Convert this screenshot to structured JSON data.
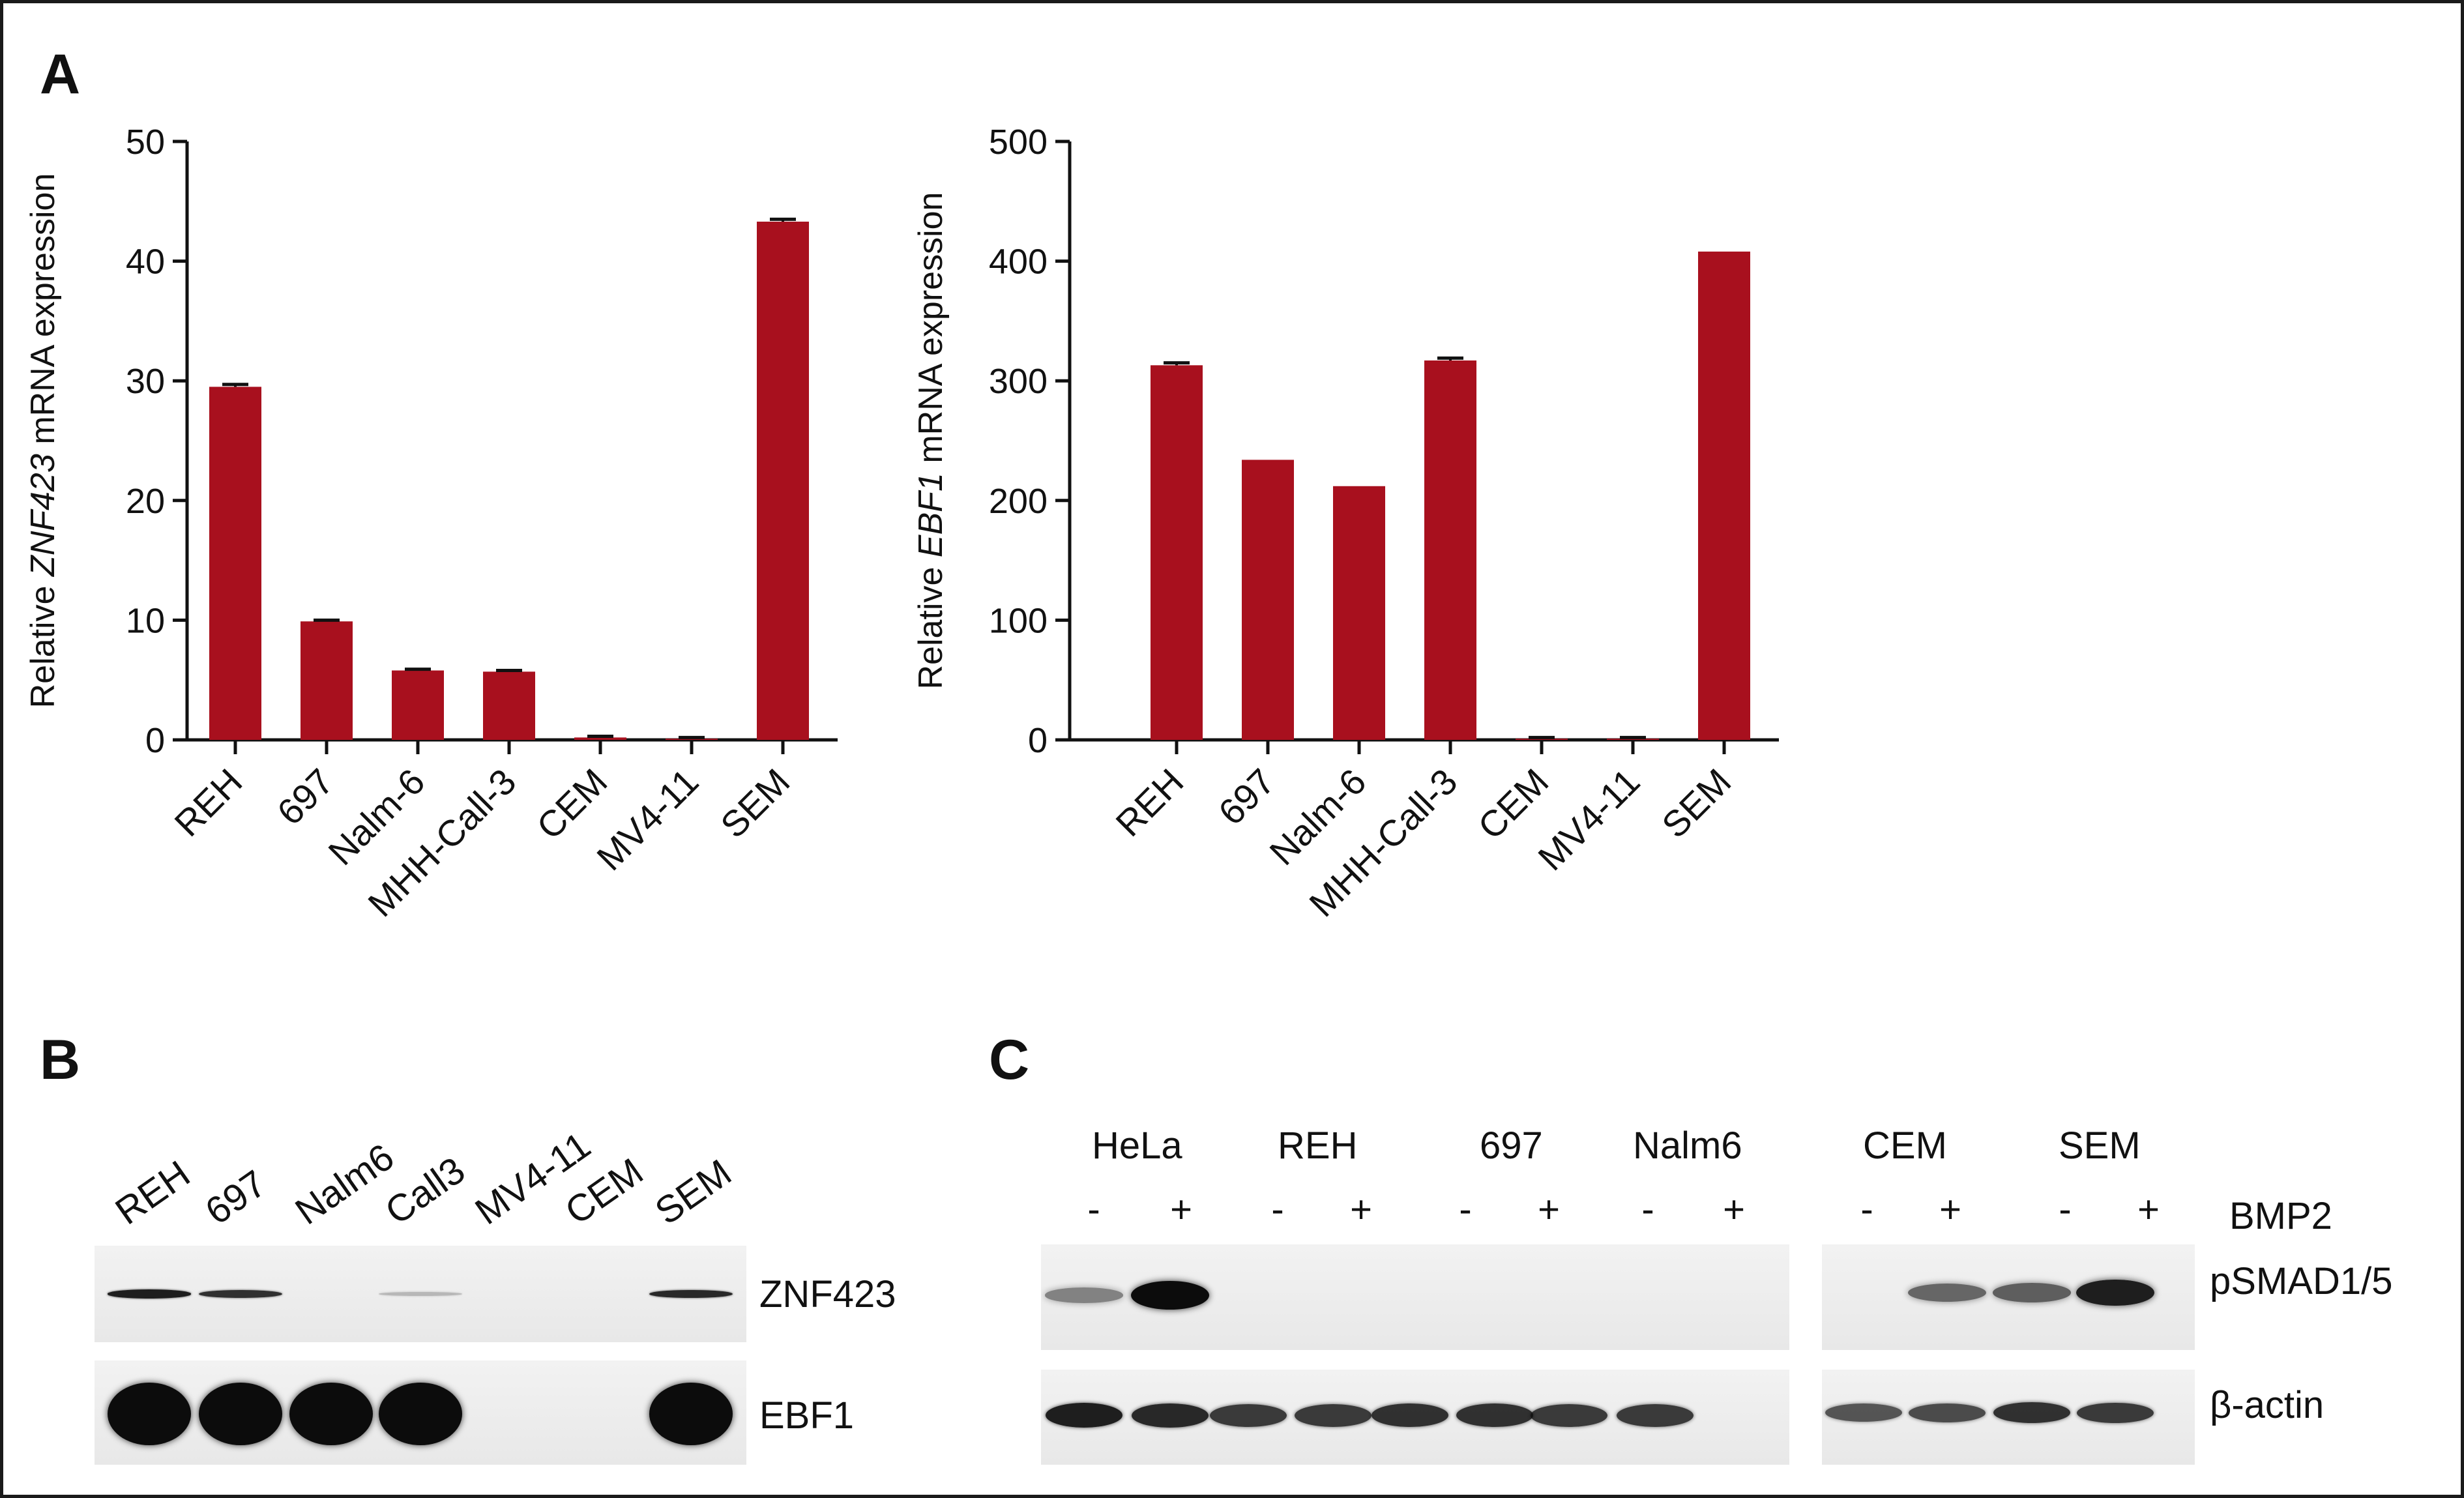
{
  "panels": {
    "a": "A",
    "b": "B",
    "c": "C"
  },
  "chart_data": [
    {
      "type": "bar",
      "title": "",
      "ylabel_prefix": "Relative ",
      "ylabel_gene": "ZNF423",
      "ylabel_suffix": " mRNA expression",
      "categories": [
        "REH",
        "697",
        "Nalm-6",
        "MHH-Call-3",
        "CEM",
        "MV4-11",
        "SEM"
      ],
      "values": [
        29.5,
        9.9,
        5.8,
        5.7,
        0.2,
        0.1,
        43.3
      ],
      "error": [
        0.2,
        0.1,
        0.1,
        0.1,
        0.1,
        0.1,
        0.2
      ],
      "ylim": [
        0,
        50
      ],
      "yticks": [
        0,
        10,
        20,
        30,
        40,
        50
      ],
      "color": "#a8101e",
      "grid": false
    },
    {
      "type": "bar",
      "title": "",
      "ylabel_prefix": "Relative ",
      "ylabel_gene": "EBF1",
      "ylabel_suffix": " mRNA expression",
      "categories": [
        "REH",
        "697",
        "Nalm-6",
        "MHH-Call-3",
        "CEM",
        "MV4-11",
        "SEM"
      ],
      "values": [
        313,
        234,
        212,
        317,
        1,
        1,
        408
      ],
      "error": [
        2,
        0,
        0,
        2,
        1,
        1,
        0
      ],
      "ylim": [
        0,
        500
      ],
      "yticks": [
        0,
        100,
        200,
        300,
        400,
        500
      ],
      "color": "#a8101e",
      "grid": false
    }
  ],
  "blot_b": {
    "lanes": [
      "REH",
      "697",
      "Nalm6",
      "Call3",
      "MV4-11",
      "CEM",
      "SEM"
    ],
    "rows": [
      {
        "label": "ZNF423",
        "intensity": [
          0.9,
          0.8,
          0,
          0.05,
          0,
          0,
          0.85
        ]
      },
      {
        "label": "EBF1",
        "intensity": [
          1,
          1,
          1,
          1,
          0,
          0,
          1
        ]
      }
    ]
  },
  "blot_c": {
    "cell_lines": [
      "HeLa",
      "REH",
      "697",
      "Nalm6",
      "CEM",
      "SEM"
    ],
    "minus": "-",
    "plus": "+",
    "treatment_label": "BMP2",
    "rows": [
      {
        "label": "pSMAD1/5",
        "intensity": [
          0.35,
          1,
          0,
          0,
          0,
          0,
          0,
          0,
          0,
          0.5,
          0.55,
          0.9
        ]
      },
      {
        "label": "β-actin",
        "intensity": [
          0.9,
          0.85,
          0.75,
          0.75,
          0.8,
          0.8,
          0.75,
          0.75,
          0.6,
          0.65,
          0.8,
          0.75
        ]
      }
    ]
  }
}
